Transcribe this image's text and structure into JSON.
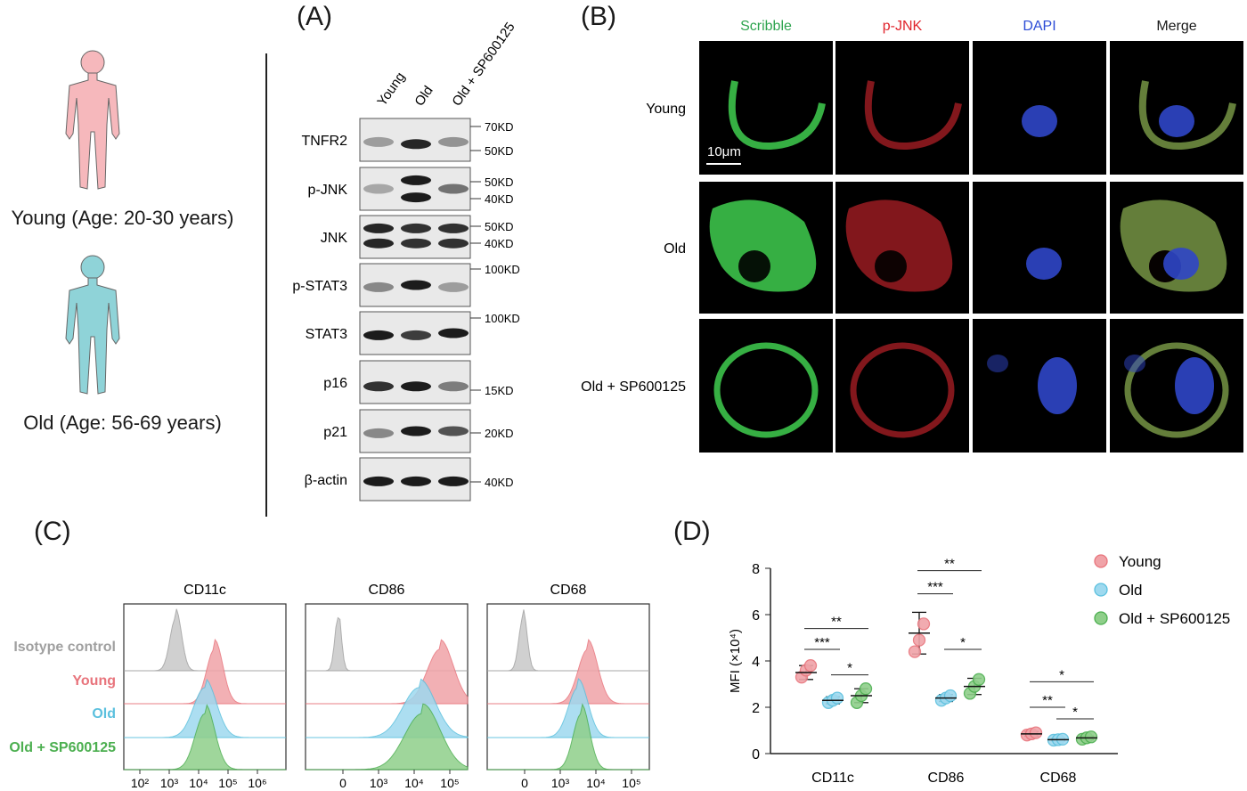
{
  "panels": {
    "a": "(A)",
    "b": "(B)",
    "c": "(C)",
    "d": "(D)"
  },
  "cohorts": {
    "young": "Young (Age: 20-30 years)",
    "old": "Old (Age: 56-69 years)"
  },
  "colors": {
    "young": "#e8747c",
    "old": "#5bc0de",
    "sp": "#4caf50",
    "iso": "#a0a0a0",
    "young_fill": "#f0a3a8",
    "old_fill": "#9ed9ef",
    "sp_fill": "#8fcf8a",
    "iso_fill": "#c8c8c8"
  },
  "western": {
    "lanes": [
      "Young",
      "Old",
      "Old + SP600125"
    ],
    "rows": [
      {
        "name": "TNFR2",
        "markers": [
          "70KD",
          "50KD"
        ]
      },
      {
        "name": "p-JNK",
        "markers": [
          "50KD",
          "40KD"
        ]
      },
      {
        "name": "JNK",
        "markers": [
          "50KD",
          "40KD"
        ]
      },
      {
        "name": "p-STAT3",
        "markers": [
          "100KD"
        ]
      },
      {
        "name": "STAT3",
        "markers": [
          "100KD"
        ]
      },
      {
        "name": "p16",
        "markers": [
          "15KD"
        ]
      },
      {
        "name": "p21",
        "markers": [
          "20KD"
        ]
      },
      {
        "name": "β-actin",
        "markers": [
          "40KD"
        ]
      }
    ]
  },
  "microscopy": {
    "channels": [
      "Scribble",
      "p-JNK",
      "DAPI",
      "Merge"
    ],
    "rows": [
      "Young",
      "Old",
      "Old + SP600125"
    ],
    "scale_bar": "10μm"
  },
  "flow": {
    "markers": [
      "CD11c",
      "CD86",
      "CD68"
    ],
    "rows": [
      "Isotype control",
      "Young",
      "Old",
      "Old + SP600125"
    ],
    "ticks_first": [
      "10²",
      "10³",
      "10⁴",
      "10⁵",
      "10⁶"
    ],
    "ticks_other": [
      "0",
      "10³",
      "10⁴",
      "10⁵"
    ]
  },
  "chart_data": {
    "type": "scatter",
    "ylabel": "MFI (×10⁴)",
    "ylim": [
      0,
      8
    ],
    "yticks": [
      0,
      2,
      4,
      6,
      8
    ],
    "categories": [
      "CD11c",
      "CD86",
      "CD68"
    ],
    "legend_position": "top-right",
    "series": [
      {
        "name": "Young",
        "mean": [
          3.5,
          5.2,
          0.85
        ],
        "sd": [
          0.3,
          0.9,
          0.1
        ],
        "points": [
          [
            3.3,
            3.6,
            3.8
          ],
          [
            4.4,
            4.9,
            5.6
          ],
          [
            0.8,
            0.85,
            0.9
          ]
        ]
      },
      {
        "name": "Old",
        "mean": [
          2.3,
          2.4,
          0.6
        ],
        "sd": [
          0.15,
          0.15,
          0.05
        ],
        "points": [
          [
            2.2,
            2.3,
            2.4
          ],
          [
            2.3,
            2.4,
            2.5
          ],
          [
            0.58,
            0.6,
            0.62
          ]
        ]
      },
      {
        "name": "Old + SP600125",
        "mean": [
          2.5,
          2.9,
          0.68
        ],
        "sd": [
          0.3,
          0.35,
          0.08
        ],
        "points": [
          [
            2.2,
            2.5,
            2.8
          ],
          [
            2.6,
            2.9,
            3.2
          ],
          [
            0.62,
            0.68,
            0.72
          ]
        ]
      }
    ],
    "significance": [
      {
        "category": "CD11c",
        "from": 0,
        "to": 2,
        "y": 5.4,
        "label": "**"
      },
      {
        "category": "CD11c",
        "from": 0,
        "to": 1,
        "y": 4.5,
        "label": "***"
      },
      {
        "category": "CD11c",
        "from": 1,
        "to": 2,
        "y": 3.4,
        "label": "*"
      },
      {
        "category": "CD86",
        "from": 0,
        "to": 2,
        "y": 7.9,
        "label": "**"
      },
      {
        "category": "CD86",
        "from": 0,
        "to": 1,
        "y": 6.9,
        "label": "***"
      },
      {
        "category": "CD86",
        "from": 1,
        "to": 2,
        "y": 4.5,
        "label": "*"
      },
      {
        "category": "CD68",
        "from": 0,
        "to": 2,
        "y": 3.1,
        "label": "*"
      },
      {
        "category": "CD68",
        "from": 0,
        "to": 1,
        "y": 2.0,
        "label": "**"
      },
      {
        "category": "CD68",
        "from": 1,
        "to": 2,
        "y": 1.5,
        "label": "*"
      }
    ]
  }
}
